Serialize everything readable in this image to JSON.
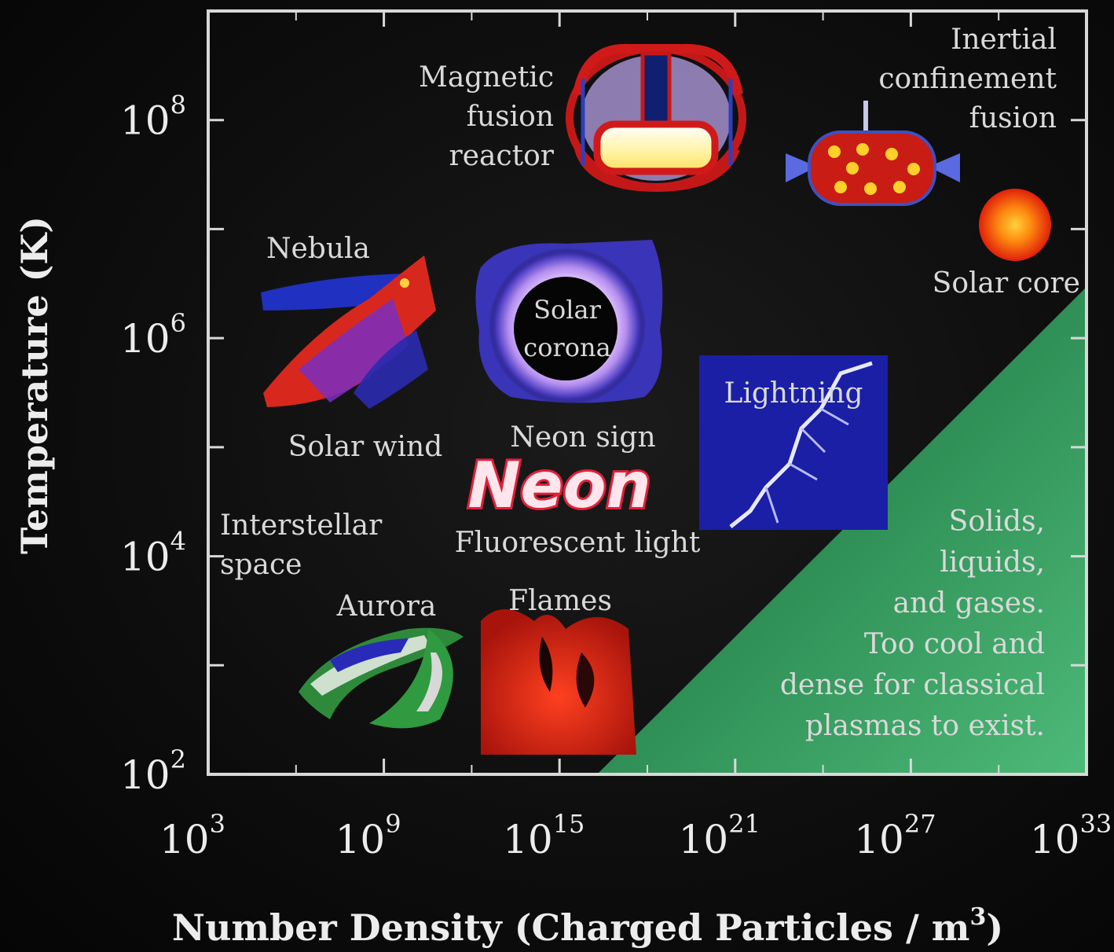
{
  "chart_data": {
    "type": "scatter",
    "title": "",
    "xlabel": "Number Density (Charged Particles / m",
    "xlabel_sup": "3",
    "xlabel_end": ")",
    "ylabel": "Temperature (K)",
    "x_scale": "log",
    "y_scale": "log",
    "xlim": [
      1000.0,
      1e+33
    ],
    "ylim": [
      100.0,
      1000000000.0
    ],
    "x_ticks": [
      {
        "value": 1000.0,
        "base": "10",
        "exp": "3"
      },
      {
        "value": 1000000000.0,
        "base": "10",
        "exp": "9"
      },
      {
        "value": 1000000000000000.0,
        "base": "10",
        "exp": "15"
      },
      {
        "value": 1e+21,
        "base": "10",
        "exp": "21"
      },
      {
        "value": 1e+27,
        "base": "10",
        "exp": "27"
      },
      {
        "value": 1e+33,
        "base": "10",
        "exp": "33"
      }
    ],
    "y_ticks": [
      {
        "value": 100.0,
        "base": "10",
        "exp": "2"
      },
      {
        "value": 10000.0,
        "base": "10",
        "exp": "4"
      },
      {
        "value": 1000000.0,
        "base": "10",
        "exp": "6"
      },
      {
        "value": 100000000.0,
        "base": "10",
        "exp": "8"
      }
    ],
    "regions": [
      {
        "id": "magnetic-fusion-reactor",
        "lines": [
          "Magnetic",
          "fusion",
          "reactor"
        ],
        "x": 1e+18,
        "y": 50000000.0,
        "icon": "tokamak-icon"
      },
      {
        "id": "inertial-confinement-fusion",
        "lines": [
          "Inertial",
          "confinement",
          "fusion"
        ],
        "x": 1e+28,
        "y": 100000000.0,
        "icon": "fusion-capsule-icon"
      },
      {
        "id": "solar-core",
        "lines": [
          "Solar core"
        ],
        "x": 1e+31,
        "y": 10000000.0,
        "icon": "sun-core-icon"
      },
      {
        "id": "nebula",
        "lines": [
          "Nebula"
        ],
        "x": 100000000.0,
        "y": 5000000.0,
        "icon": "nebula-icon"
      },
      {
        "id": "solar-corona",
        "lines": [
          "Solar",
          "corona"
        ],
        "x": 1000000000000000.0,
        "y": 1000000.0,
        "icon": "corona-icon"
      },
      {
        "id": "solar-wind",
        "lines": [
          "Solar wind"
        ],
        "x": 100000000.0,
        "y": 100000.0,
        "icon": "solar-wind-icon"
      },
      {
        "id": "neon-sign",
        "lines": [
          "Neon sign"
        ],
        "x": 1000000000000000.0,
        "y": 50000.0,
        "icon": "neon-icon",
        "icon_text": "Neon"
      },
      {
        "id": "lightning",
        "lines": [
          "Lightning"
        ],
        "x": 1e+23,
        "y": 50000.0,
        "icon": "lightning-icon"
      },
      {
        "id": "interstellar-space",
        "lines": [
          "Interstellar",
          "space"
        ],
        "x": 1000000.0,
        "y": 10000.0,
        "icon": ""
      },
      {
        "id": "fluorescent-light",
        "lines": [
          "Fluorescent light"
        ],
        "x": 1e+16,
        "y": 10000.0,
        "icon": ""
      },
      {
        "id": "aurora",
        "lines": [
          "Aurora"
        ],
        "x": 10000000000.0,
        "y": 500.0,
        "icon": "aurora-icon"
      },
      {
        "id": "flames",
        "lines": [
          "Flames"
        ],
        "x": 1000000000000000.0,
        "y": 300.0,
        "icon": "flame-icon"
      },
      {
        "id": "solids-liquids-gases",
        "lines": [
          "Solids,",
          "liquids,",
          "and gases.",
          "Too cool and",
          "dense for classical",
          "plasmas to exist."
        ],
        "x": 1e+27,
        "y": 1000.0,
        "icon": ""
      }
    ],
    "grid": false,
    "legend": "none"
  },
  "colors": {
    "background": "#0d0d0d",
    "frame": "#d8d8d8",
    "label": "#d9d9d9",
    "non_plasma_region": "#3fa96a"
  }
}
